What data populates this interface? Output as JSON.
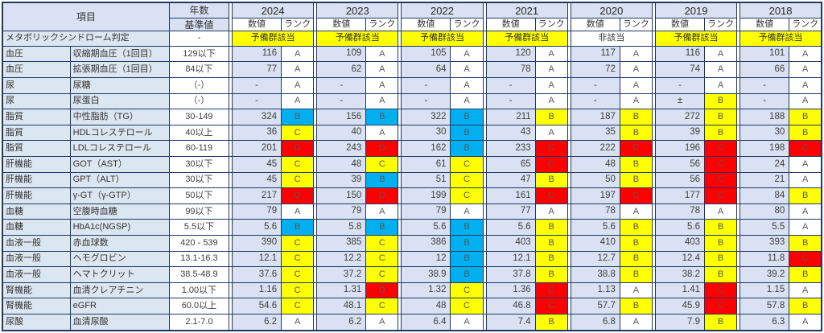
{
  "table": {
    "headers": {
      "item": "項目",
      "years_label": "年数",
      "basis_label": "基準値",
      "value_label": "数値",
      "rank_label": "ランク"
    },
    "years": [
      "2024",
      "2023",
      "2022",
      "2021",
      "2020",
      "2019",
      "2018"
    ],
    "colors": {
      "w": "#FFFFFF",
      "y": "#FFFF00",
      "c": "#00B0F0",
      "r": "#FF0000",
      "cell_bg": "#D9E1F2",
      "label_bg": "#DCE6F1",
      "header_bg": "#D9E1F2",
      "border": "#1F3864"
    },
    "metabo": {
      "label": "メタボリックシンドローム判定",
      "basis": "-",
      "cells": [
        [
          "予備群該当",
          "y"
        ],
        [
          "予備群該当",
          "y"
        ],
        [
          "予備群該当",
          "y"
        ],
        [
          "予備群該当",
          "y"
        ],
        [
          "非該当",
          "w"
        ],
        [
          "予備群該当",
          "y"
        ],
        [
          "予備群該当",
          "y"
        ]
      ]
    },
    "rows": [
      {
        "category": "血圧",
        "item": "収縮期血圧（1回目）",
        "basis": "129以下",
        "cells": [
          [
            "116",
            "A",
            "w"
          ],
          [
            "109",
            "A",
            "w"
          ],
          [
            "105",
            "A",
            "w"
          ],
          [
            "120",
            "A",
            "w"
          ],
          [
            "117",
            "A",
            "w"
          ],
          [
            "116",
            "A",
            "w"
          ],
          [
            "101",
            "A",
            "w"
          ]
        ]
      },
      {
        "category": "血圧",
        "item": "拡張期血圧（1回目）",
        "basis": "84以下",
        "cells": [
          [
            "77",
            "A",
            "w"
          ],
          [
            "62",
            "A",
            "w"
          ],
          [
            "64",
            "A",
            "w"
          ],
          [
            "78",
            "A",
            "w"
          ],
          [
            "72",
            "A",
            "w"
          ],
          [
            "74",
            "A",
            "w"
          ],
          [
            "66",
            "A",
            "w"
          ]
        ]
      },
      {
        "category": "尿",
        "item": "尿糖",
        "basis": "（-）",
        "cells": [
          [
            "-",
            "A",
            "w"
          ],
          [
            "-",
            "A",
            "w"
          ],
          [
            "-",
            "A",
            "w"
          ],
          [
            "-",
            "A",
            "w"
          ],
          [
            "-",
            "A",
            "w"
          ],
          [
            "-",
            "A",
            "w"
          ],
          [
            "-",
            "A",
            "w"
          ]
        ]
      },
      {
        "category": "尿",
        "item": "尿蛋白",
        "basis": "（-）",
        "cells": [
          [
            "-",
            "A",
            "w"
          ],
          [
            "-",
            "A",
            "w"
          ],
          [
            "-",
            "A",
            "w"
          ],
          [
            "-",
            "A",
            "w"
          ],
          [
            "-",
            "A",
            "w"
          ],
          [
            "±",
            "B",
            "y"
          ],
          [
            "-",
            "A",
            "w"
          ]
        ]
      },
      {
        "category": "脂質",
        "item": "中性脂肪（TG）",
        "basis": "30-149",
        "cells": [
          [
            "324",
            "B",
            "c"
          ],
          [
            "156",
            "B",
            "c"
          ],
          [
            "322",
            "B",
            "c"
          ],
          [
            "211",
            "B",
            "y"
          ],
          [
            "187",
            "B",
            "y"
          ],
          [
            "272",
            "B",
            "y"
          ],
          [
            "188",
            "B",
            "y"
          ]
        ]
      },
      {
        "category": "脂質",
        "item": "HDLコレステロール",
        "basis": "40以上",
        "cells": [
          [
            "36",
            "C",
            "y"
          ],
          [
            "40",
            "A",
            "w"
          ],
          [
            "30",
            "B",
            "c"
          ],
          [
            "43",
            "A",
            "w"
          ],
          [
            "35",
            "B",
            "y"
          ],
          [
            "39",
            "B",
            "y"
          ],
          [
            "30",
            "B",
            "y"
          ]
        ]
      },
      {
        "category": "脂質",
        "item": "LDLコレステロール",
        "basis": "60-119",
        "cells": [
          [
            "201",
            "D",
            "r"
          ],
          [
            "243",
            "D",
            "r"
          ],
          [
            "162",
            "B",
            "c"
          ],
          [
            "233",
            "C",
            "r"
          ],
          [
            "222",
            "C",
            "r"
          ],
          [
            "196",
            "C",
            "r"
          ],
          [
            "198",
            "C",
            "r"
          ]
        ]
      },
      {
        "category": "肝機能",
        "item": "GOT（AST）",
        "basis": "30以下",
        "cells": [
          [
            "45",
            "C",
            "y"
          ],
          [
            "48",
            "C",
            "y"
          ],
          [
            "61",
            "C",
            "y"
          ],
          [
            "65",
            "C",
            "r"
          ],
          [
            "48",
            "B",
            "y"
          ],
          [
            "56",
            "C",
            "r"
          ],
          [
            "24",
            "A",
            "w"
          ]
        ]
      },
      {
        "category": "肝機能",
        "item": "GPT（ALT）",
        "basis": "30以下",
        "cells": [
          [
            "45",
            "C",
            "y"
          ],
          [
            "39",
            "B",
            "c"
          ],
          [
            "51",
            "C",
            "y"
          ],
          [
            "47",
            "B",
            "y"
          ],
          [
            "50",
            "B",
            "y"
          ],
          [
            "56",
            "C",
            "r"
          ],
          [
            "21",
            "A",
            "w"
          ]
        ]
      },
      {
        "category": "肝機能",
        "item": "γ-GT（γ-GTP）",
        "basis": "50以下",
        "cells": [
          [
            "217",
            "D",
            "r"
          ],
          [
            "150",
            "D",
            "r"
          ],
          [
            "199",
            "C",
            "y"
          ],
          [
            "161",
            "C",
            "r"
          ],
          [
            "197",
            "C",
            "r"
          ],
          [
            "177",
            "C",
            "r"
          ],
          [
            "84",
            "B",
            "y"
          ]
        ]
      },
      {
        "category": "血糖",
        "item": "空腹時血糖",
        "basis": "99以下",
        "cells": [
          [
            "79",
            "A",
            "w"
          ],
          [
            "79",
            "A",
            "w"
          ],
          [
            "79",
            "A",
            "w"
          ],
          [
            "77",
            "A",
            "w"
          ],
          [
            "78",
            "A",
            "w"
          ],
          [
            "78",
            "A",
            "w"
          ],
          [
            "80",
            "A",
            "w"
          ]
        ]
      },
      {
        "category": "血糖",
        "item": "HbA1c(NGSP)",
        "basis": "5.5以下",
        "cells": [
          [
            "5.6",
            "B",
            "c"
          ],
          [
            "5.8",
            "B",
            "c"
          ],
          [
            "5.6",
            "B",
            "c"
          ],
          [
            "5.6",
            "B",
            "y"
          ],
          [
            "5.6",
            "B",
            "y"
          ],
          [
            "5.6",
            "B",
            "y"
          ],
          [
            "5.5",
            "A",
            "w"
          ]
        ]
      },
      {
        "category": "血液一般",
        "item": "赤血球数",
        "basis": "420 - 539",
        "cells": [
          [
            "390",
            "C",
            "y"
          ],
          [
            "385",
            "C",
            "y"
          ],
          [
            "386",
            "B",
            "c"
          ],
          [
            "403",
            "B",
            "y"
          ],
          [
            "410",
            "B",
            "y"
          ],
          [
            "403",
            "B",
            "y"
          ],
          [
            "393",
            "B",
            "y"
          ]
        ]
      },
      {
        "category": "血液一般",
        "item": "ヘモグロビン",
        "basis": "13.1-16.3",
        "cells": [
          [
            "12.1",
            "C",
            "y"
          ],
          [
            "12.2",
            "C",
            "y"
          ],
          [
            "12",
            "B",
            "c"
          ],
          [
            "12.1",
            "B",
            "y"
          ],
          [
            "12.7",
            "B",
            "y"
          ],
          [
            "12.4",
            "B",
            "y"
          ],
          [
            "11.8",
            "C",
            "r"
          ]
        ]
      },
      {
        "category": "血液一般",
        "item": "ヘマトクリット",
        "basis": "38.5-48.9",
        "cells": [
          [
            "37.6",
            "C",
            "y"
          ],
          [
            "37.2",
            "C",
            "y"
          ],
          [
            "38.9",
            "B",
            "c"
          ],
          [
            "37.8",
            "B",
            "y"
          ],
          [
            "38.8",
            "B",
            "y"
          ],
          [
            "38.2",
            "B",
            "y"
          ],
          [
            "39.2",
            "B",
            "y"
          ]
        ]
      },
      {
        "category": "腎機能",
        "item": "血清クレアチニン",
        "basis": "1.00以下",
        "cells": [
          [
            "1.16",
            "C",
            "y"
          ],
          [
            "1.31",
            "D",
            "r"
          ],
          [
            "1.32",
            "C",
            "y"
          ],
          [
            "1.36",
            "C",
            "r"
          ],
          [
            "1.13",
            "A",
            "w"
          ],
          [
            "1.41",
            "C",
            "r"
          ],
          [
            "1.15",
            "A",
            "w"
          ]
        ]
      },
      {
        "category": "腎機能",
        "item": "eGFR",
        "basis": "60.0以上",
        "cells": [
          [
            "54.6",
            "C",
            "y"
          ],
          [
            "48.1",
            "C",
            "y"
          ],
          [
            "48",
            "C",
            "y"
          ],
          [
            "46.8",
            "C",
            "r"
          ],
          [
            "57.7",
            "B",
            "y"
          ],
          [
            "45.9",
            "C",
            "r"
          ],
          [
            "57.8",
            "B",
            "y"
          ]
        ]
      },
      {
        "category": "尿酸",
        "item": "血清尿酸",
        "basis": "2.1-7.0",
        "cells": [
          [
            "6.2",
            "A",
            "w"
          ],
          [
            "6.2",
            "A",
            "w"
          ],
          [
            "6.4",
            "A",
            "w"
          ],
          [
            "7.4",
            "B",
            "y"
          ],
          [
            "6.8",
            "A",
            "w"
          ],
          [
            "7.9",
            "B",
            "y"
          ],
          [
            "6.3",
            "A",
            "w"
          ]
        ]
      }
    ]
  }
}
